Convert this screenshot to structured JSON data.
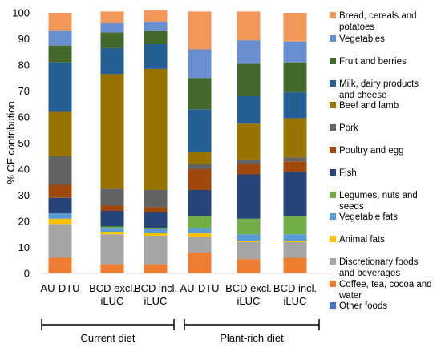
{
  "chart_data": {
    "type": "bar",
    "stacked": true,
    "title": "",
    "xlabel": "",
    "ylabel": "% CF contribution",
    "ylim": [
      0,
      100
    ],
    "yticks": [
      0,
      10,
      20,
      30,
      40,
      50,
      60,
      70,
      80,
      90,
      100
    ],
    "grid": false,
    "legend_position": "right",
    "categories": [
      [
        "AU-DTU"
      ],
      [
        "BCD excl.",
        "iLUC"
      ],
      [
        "BCD incl.",
        "iLUC"
      ],
      [
        "AU-DTU"
      ],
      [
        "BCD excl.",
        "iLUC"
      ],
      [
        "BCD incl.",
        "iLUC"
      ]
    ],
    "groups": [
      {
        "label": "Current diet",
        "categories": [
          0,
          1,
          2
        ]
      },
      {
        "label": "Plant-rich diet",
        "categories": [
          3,
          4,
          5
        ]
      }
    ],
    "series": [
      {
        "name": "Other foods",
        "color": "#4472c4",
        "values": [
          0,
          0,
          0,
          0,
          0,
          0
        ]
      },
      {
        "name": "Coffee, tea, cocoa and water",
        "color": "#ed7d31",
        "values": [
          6,
          3.5,
          3.5,
          8,
          5.5,
          6
        ]
      },
      {
        "name": "Discretionary foods and beverages",
        "color": "#a5a5a5",
        "values": [
          13,
          11.5,
          11,
          6,
          6.5,
          6
        ]
      },
      {
        "name": "Animal fats",
        "color": "#ffc000",
        "values": [
          2,
          1,
          1,
          1.5,
          0.5,
          0.5
        ]
      },
      {
        "name": "Vegetable fats",
        "color": "#5b9bd5",
        "values": [
          2,
          1.5,
          1.5,
          2,
          2.5,
          2.5
        ]
      },
      {
        "name": "Legumes, nuts and seeds",
        "color": "#70ad47",
        "values": [
          0,
          0.5,
          0.5,
          4.5,
          6,
          7
        ]
      },
      {
        "name": "Fish",
        "color": "#264478",
        "values": [
          6,
          6,
          6,
          10,
          17,
          17
        ]
      },
      {
        "name": "Poultry and egg",
        "color": "#9e480e",
        "values": [
          5,
          2,
          2,
          8,
          4,
          4
        ]
      },
      {
        "name": "Pork",
        "color": "#636363",
        "values": [
          11,
          6.5,
          6.5,
          2,
          1.5,
          1.5
        ]
      },
      {
        "name": "Beef and lamb",
        "color": "#997300",
        "values": [
          17,
          44,
          46.5,
          4.5,
          14,
          15
        ]
      },
      {
        "name": "Milk, dairy products and cheese",
        "color": "#255e91",
        "values": [
          19,
          10,
          9.5,
          16.5,
          10.5,
          10
        ]
      },
      {
        "name": "Fruit and berries",
        "color": "#43682b",
        "values": [
          6.5,
          6,
          5,
          12,
          12.5,
          11.5
        ]
      },
      {
        "name": "Vegetables",
        "color": "#698ed0",
        "values": [
          5.5,
          3.5,
          3.5,
          11,
          9,
          8
        ]
      },
      {
        "name": "Bread, cereals and potatoes",
        "color": "#f1975a",
        "values": [
          7,
          4.5,
          4.5,
          14.5,
          11,
          11
        ]
      }
    ]
  }
}
